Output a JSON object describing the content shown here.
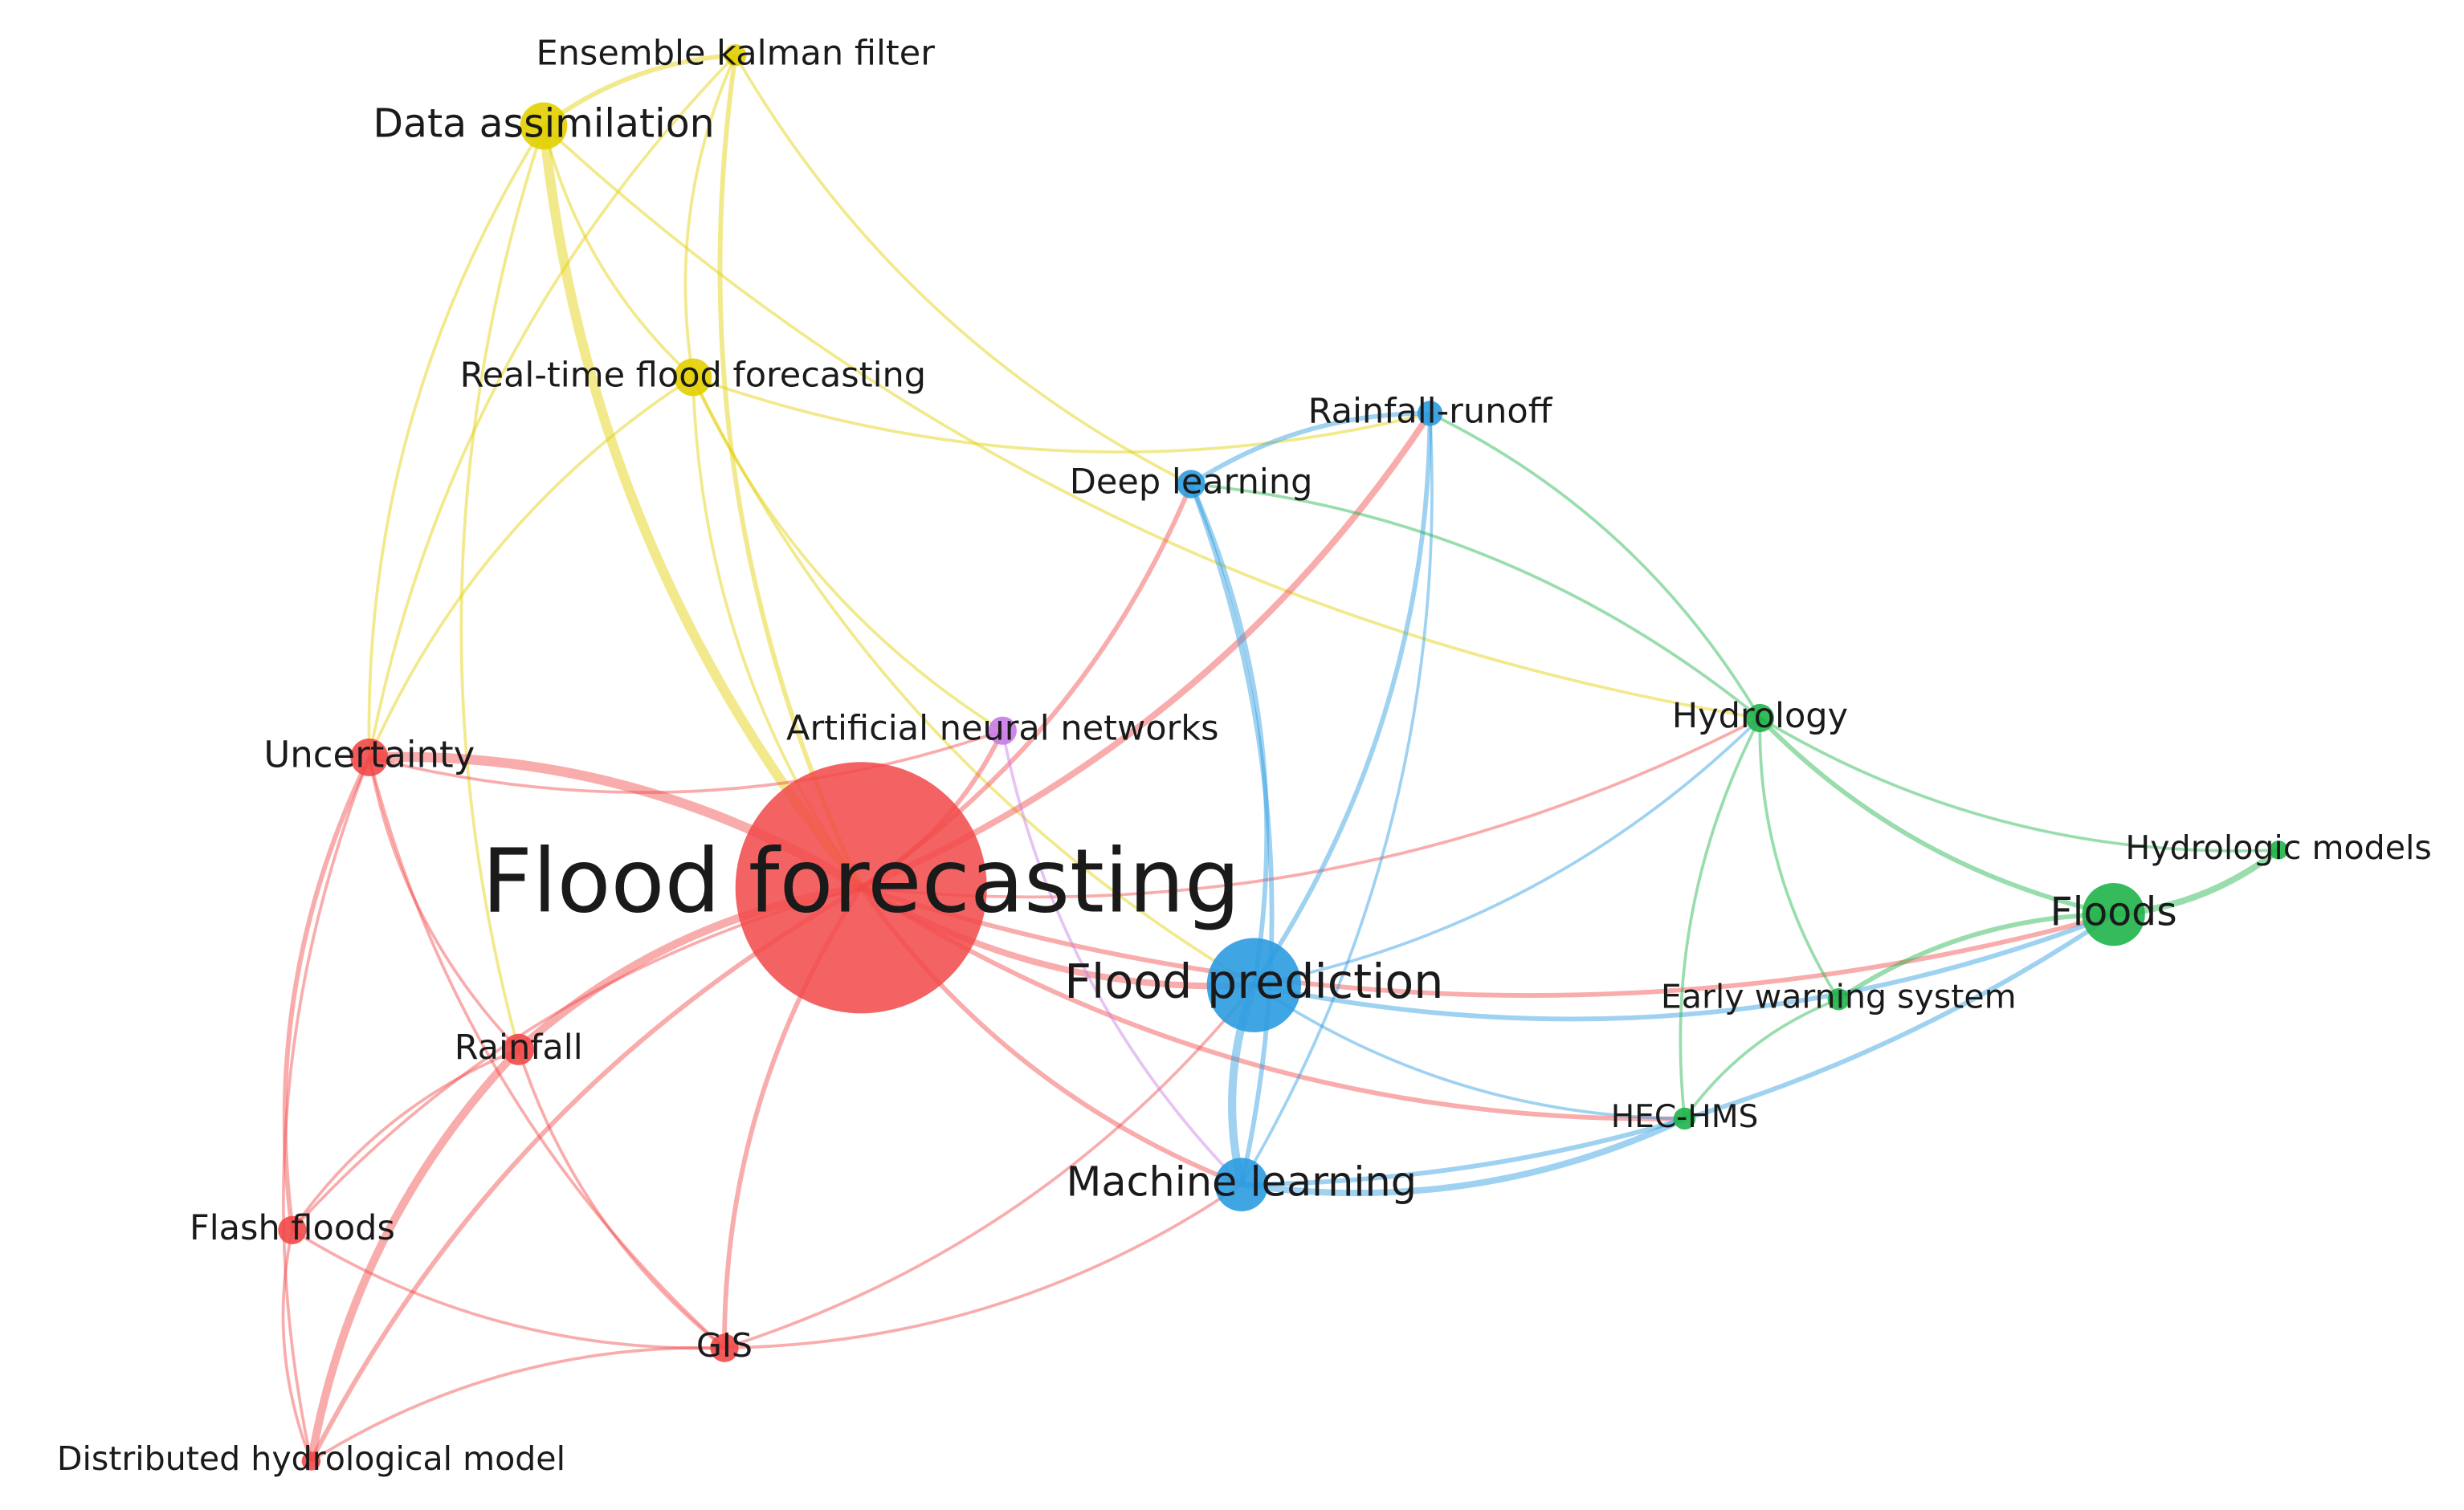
{
  "nodes": [
    {
      "label": "Ensemble kalman filter"
    },
    {
      "label": "Data assimilation"
    },
    {
      "label": "Real-time flood forecasting"
    },
    {
      "label": "Rainfall-runoff"
    },
    {
      "label": "Deep learning"
    },
    {
      "label": "Artificial neural networks"
    },
    {
      "label": "Hydrology"
    },
    {
      "label": "Uncertainty"
    },
    {
      "label": "Flood forecasting"
    },
    {
      "label": "Flood prediction"
    },
    {
      "label": "Floods"
    },
    {
      "label": "Hydrologic models"
    },
    {
      "label": "Early warning system"
    },
    {
      "label": "HEC-HMS"
    },
    {
      "label": "Rainfall"
    },
    {
      "label": "Machine learning"
    },
    {
      "label": "Flash floods"
    },
    {
      "label": "GIS"
    },
    {
      "label": "Distributed hydrological model"
    }
  ]
}
